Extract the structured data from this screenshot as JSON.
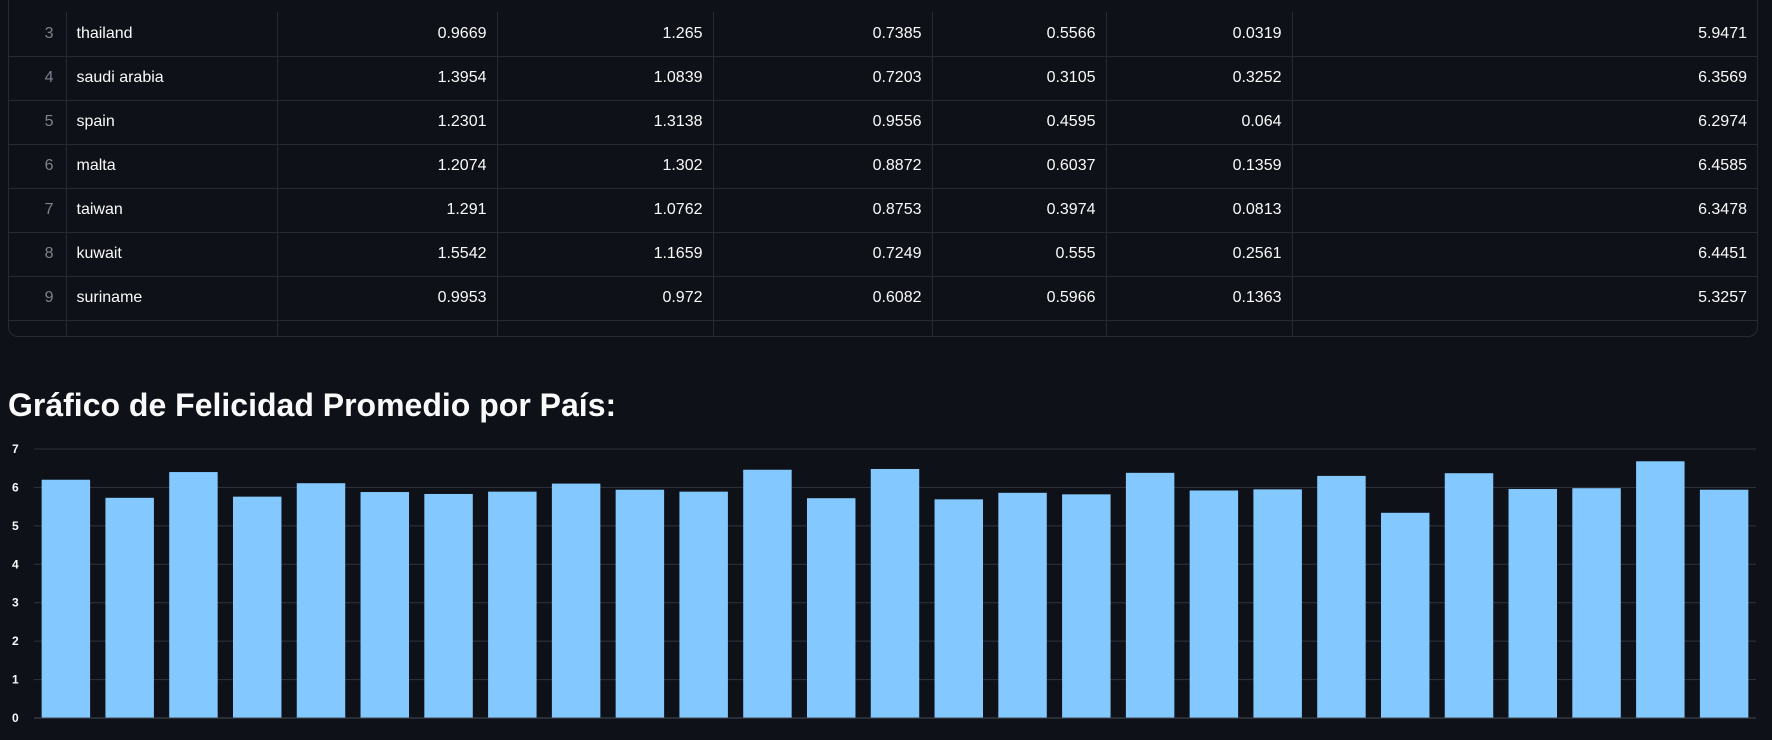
{
  "table": {
    "rows": [
      {
        "index": "3",
        "country": "thailand",
        "c1": "0.9669",
        "c2": "1.265",
        "c3": "0.7385",
        "c4": "0.5566",
        "c5": "0.0319",
        "c6": "5.9471"
      },
      {
        "index": "4",
        "country": "saudi arabia",
        "c1": "1.3954",
        "c2": "1.0839",
        "c3": "0.7203",
        "c4": "0.3105",
        "c5": "0.3252",
        "c6": "6.3569"
      },
      {
        "index": "5",
        "country": "spain",
        "c1": "1.2301",
        "c2": "1.3138",
        "c3": "0.9556",
        "c4": "0.4595",
        "c5": "0.064",
        "c6": "6.2974"
      },
      {
        "index": "6",
        "country": "malta",
        "c1": "1.2074",
        "c2": "1.302",
        "c3": "0.8872",
        "c4": "0.6037",
        "c5": "0.1359",
        "c6": "6.4585"
      },
      {
        "index": "7",
        "country": "taiwan",
        "c1": "1.291",
        "c2": "1.0762",
        "c3": "0.8753",
        "c4": "0.3974",
        "c5": "0.0813",
        "c6": "6.3478"
      },
      {
        "index": "8",
        "country": "kuwait",
        "c1": "1.5542",
        "c2": "1.1659",
        "c3": "0.7249",
        "c4": "0.555",
        "c5": "0.2561",
        "c6": "6.4451"
      },
      {
        "index": "9",
        "country": "suriname",
        "c1": "0.9953",
        "c2": "0.972",
        "c3": "0.6082",
        "c4": "0.5966",
        "c5": "0.1363",
        "c6": "5.3257"
      }
    ]
  },
  "section_title": "Gráfico de Felicidad Promedio por País:",
  "chart_data": {
    "type": "bar",
    "title": "",
    "xlabel": "",
    "ylabel": "",
    "ylim": [
      0,
      7
    ],
    "yticks": [
      "0",
      "1",
      "2",
      "3",
      "4",
      "5",
      "6",
      "7"
    ],
    "grid": true,
    "bar_color": "#83c9ff",
    "grid_color": "#31333f",
    "tick_color": "#fafafa",
    "values": [
      6.2,
      5.73,
      6.4,
      5.76,
      6.11,
      5.88,
      5.83,
      5.89,
      6.1,
      5.94,
      5.89,
      6.46,
      5.72,
      6.48,
      5.69,
      5.86,
      5.82,
      6.38,
      5.92,
      5.95,
      6.3,
      5.34,
      6.37,
      5.96,
      5.98,
      6.68,
      5.94
    ]
  }
}
